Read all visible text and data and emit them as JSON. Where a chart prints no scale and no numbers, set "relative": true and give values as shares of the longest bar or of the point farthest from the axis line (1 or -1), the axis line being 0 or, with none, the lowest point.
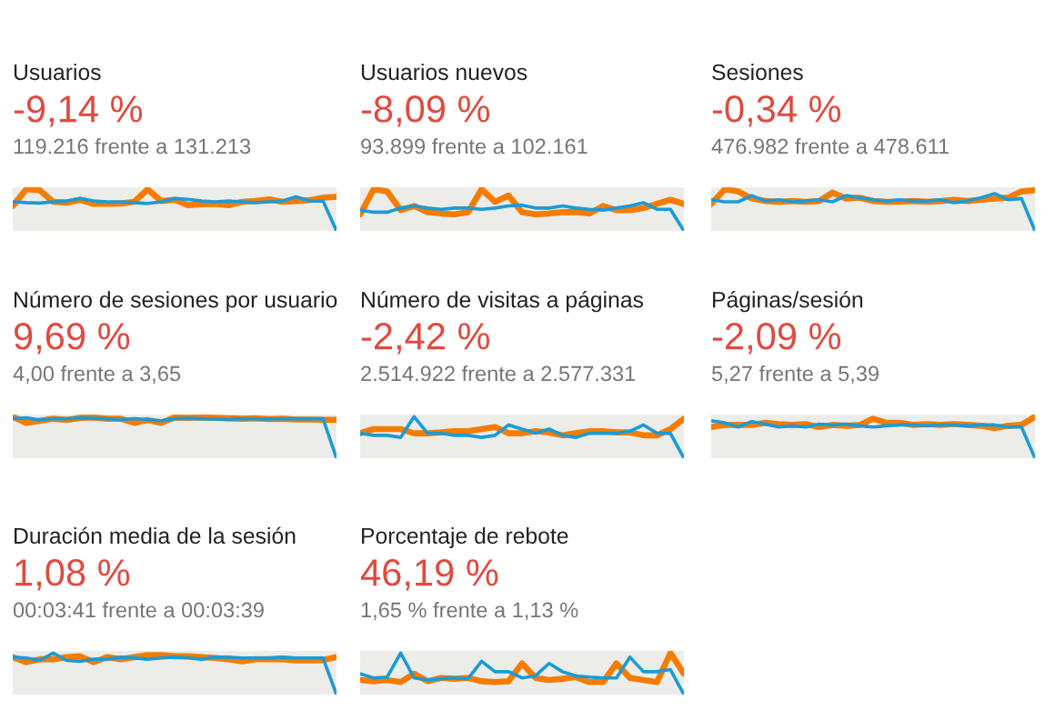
{
  "chart_data": [
    {
      "type": "line",
      "relative": true,
      "title": "Usuarios",
      "subtitle": "-9,14 %",
      "annotations": [
        "119.216 frente a 131.213"
      ],
      "categories": [
        null,
        null,
        null,
        null,
        null,
        null,
        null,
        null,
        null,
        null,
        null,
        null,
        null,
        null,
        null,
        null,
        null,
        null,
        null,
        null,
        null,
        null,
        null,
        null,
        null
      ],
      "series": [
        {
          "color": "#f57c00",
          "values": [
            0.6,
            1,
            0.98,
            0.7,
            0.68,
            0.75,
            0.65,
            0.65,
            0.66,
            0.7,
            1,
            0.72,
            0.75,
            0.62,
            0.64,
            0.65,
            0.62,
            0.7,
            0.72,
            0.76,
            0.7,
            0.72,
            0.74,
            0.8,
            0.82
          ]
        },
        {
          "color": "#1a9bd7",
          "values": [
            0.7,
            0.68,
            0.67,
            0.7,
            0.72,
            0.78,
            0.72,
            0.7,
            0.7,
            0.68,
            0.66,
            0.7,
            0.78,
            0.76,
            0.72,
            0.7,
            0.72,
            0.7,
            0.68,
            0.7,
            0.72,
            0.82,
            0.72,
            0.72,
            0
          ]
        }
      ]
    },
    {
      "type": "line",
      "relative": true,
      "title": "Usuarios nuevos",
      "subtitle": "-8,09 %",
      "annotations": [
        "93.899 frente a 102.161"
      ],
      "categories": [
        null,
        null,
        null,
        null,
        null,
        null,
        null,
        null,
        null,
        null,
        null,
        null,
        null,
        null,
        null,
        null,
        null,
        null,
        null,
        null,
        null,
        null,
        null,
        null,
        null
      ],
      "series": [
        {
          "color": "#f57c00",
          "values": [
            0.4,
            1,
            0.95,
            0.5,
            0.6,
            0.45,
            0.42,
            0.4,
            0.45,
            1,
            0.7,
            0.85,
            0.45,
            0.4,
            0.42,
            0.45,
            0.45,
            0.42,
            0.6,
            0.5,
            0.5,
            0.55,
            0.65,
            0.75,
            0.65
          ]
        },
        {
          "color": "#1a9bd7",
          "values": [
            0.5,
            0.45,
            0.45,
            0.55,
            0.6,
            0.55,
            0.52,
            0.55,
            0.55,
            0.52,
            0.55,
            0.6,
            0.62,
            0.55,
            0.55,
            0.6,
            0.55,
            0.52,
            0.5,
            0.55,
            0.6,
            0.68,
            0.52,
            0.52,
            0
          ]
        }
      ]
    },
    {
      "type": "line",
      "relative": true,
      "title": "Sesiones",
      "subtitle": "-0,34 %",
      "annotations": [
        "476.982 frente a 478.611"
      ],
      "categories": [
        null,
        null,
        null,
        null,
        null,
        null,
        null,
        null,
        null,
        null,
        null,
        null,
        null,
        null,
        null,
        null,
        null,
        null,
        null,
        null,
        null,
        null,
        null,
        null,
        null
      ],
      "series": [
        {
          "color": "#f57c00",
          "values": [
            0.65,
            1,
            0.95,
            0.78,
            0.72,
            0.7,
            0.72,
            0.7,
            0.72,
            0.92,
            0.78,
            0.8,
            0.72,
            0.7,
            0.7,
            0.72,
            0.7,
            0.72,
            0.75,
            0.72,
            0.75,
            0.78,
            0.8,
            0.95,
            0.98
          ]
        },
        {
          "color": "#1a9bd7",
          "values": [
            0.75,
            0.7,
            0.7,
            0.85,
            0.72,
            0.75,
            0.7,
            0.72,
            0.75,
            0.7,
            0.85,
            0.8,
            0.75,
            0.72,
            0.75,
            0.72,
            0.72,
            0.75,
            0.68,
            0.72,
            0.8,
            0.9,
            0.75,
            0.78,
            0
          ]
        }
      ]
    },
    {
      "type": "line",
      "relative": true,
      "title": "Número de sesiones por usuario",
      "subtitle": "9,69 %",
      "annotations": [
        "4,00 frente a 3,65"
      ],
      "categories": [
        null,
        null,
        null,
        null,
        null,
        null,
        null,
        null,
        null,
        null,
        null,
        null,
        null,
        null,
        null,
        null,
        null,
        null,
        null,
        null,
        null,
        null,
        null,
        null,
        null
      ],
      "series": [
        {
          "color": "#f57c00",
          "values": [
            1,
            0.85,
            0.9,
            0.95,
            0.92,
            0.97,
            0.98,
            0.95,
            0.95,
            0.85,
            0.92,
            0.85,
            0.98,
            0.97,
            0.98,
            0.97,
            0.96,
            0.95,
            0.96,
            0.94,
            0.95,
            0.93,
            0.93,
            0.92,
            0.92
          ]
        },
        {
          "color": "#1a9bd7",
          "values": [
            0.95,
            0.97,
            0.92,
            0.95,
            0.95,
            0.97,
            0.96,
            0.95,
            0.93,
            0.95,
            0.93,
            0.9,
            0.95,
            0.96,
            0.95,
            0.94,
            0.93,
            0.95,
            0.95,
            0.94,
            0.95,
            0.95,
            0.95,
            0.95,
            0
          ]
        }
      ]
    },
    {
      "type": "line",
      "relative": true,
      "title": "Número de visitas a páginas",
      "subtitle": "-2,42 %",
      "annotations": [
        "2.514.922 frente a 2.577.331"
      ],
      "categories": [
        null,
        null,
        null,
        null,
        null,
        null,
        null,
        null,
        null,
        null,
        null,
        null,
        null,
        null,
        null,
        null,
        null,
        null,
        null,
        null,
        null,
        null,
        null,
        null,
        null
      ],
      "series": [
        {
          "color": "#f57c00",
          "values": [
            0.6,
            0.7,
            0.7,
            0.7,
            0.6,
            0.6,
            0.62,
            0.65,
            0.65,
            0.7,
            0.75,
            0.6,
            0.6,
            0.65,
            0.62,
            0.55,
            0.6,
            0.65,
            0.65,
            0.62,
            0.62,
            0.55,
            0.55,
            0.7,
            0.95
          ]
        },
        {
          "color": "#1a9bd7",
          "values": [
            0.6,
            0.55,
            0.55,
            0.5,
            1,
            0.6,
            0.6,
            0.55,
            0.55,
            0.5,
            0.55,
            0.8,
            0.7,
            0.6,
            0.7,
            0.55,
            0.5,
            0.6,
            0.6,
            0.6,
            0.65,
            0.8,
            0.6,
            0.6,
            0
          ]
        }
      ]
    },
    {
      "type": "line",
      "relative": true,
      "title": "Páginas/sesión",
      "subtitle": "-2,09 %",
      "annotations": [
        "5,27 frente a 5,39"
      ],
      "categories": [
        null,
        null,
        null,
        null,
        null,
        null,
        null,
        null,
        null,
        null,
        null,
        null,
        null,
        null,
        null,
        null,
        null,
        null,
        null,
        null,
        null,
        null,
        null,
        null,
        null
      ],
      "series": [
        {
          "color": "#f57c00",
          "values": [
            0.75,
            0.8,
            0.8,
            0.8,
            0.85,
            0.82,
            0.8,
            0.82,
            0.75,
            0.8,
            0.78,
            0.8,
            0.95,
            0.85,
            0.85,
            0.8,
            0.82,
            0.8,
            0.82,
            0.8,
            0.78,
            0.72,
            0.78,
            0.8,
            1
          ]
        },
        {
          "color": "#1a9bd7",
          "values": [
            0.9,
            0.85,
            0.75,
            0.88,
            0.82,
            0.75,
            0.78,
            0.75,
            0.82,
            0.8,
            0.82,
            0.78,
            0.75,
            0.78,
            0.8,
            0.8,
            0.78,
            0.8,
            0.8,
            0.78,
            0.8,
            0.8,
            0.75,
            0.75,
            0
          ]
        }
      ]
    },
    {
      "type": "line",
      "relative": true,
      "title": "Duración media de la sesión",
      "subtitle": "1,08 %",
      "annotations": [
        "00:03:41 frente a 00:03:39"
      ],
      "categories": [
        null,
        null,
        null,
        null,
        null,
        null,
        null,
        null,
        null,
        null,
        null,
        null,
        null,
        null,
        null,
        null,
        null,
        null,
        null,
        null,
        null,
        null,
        null,
        null,
        null
      ],
      "series": [
        {
          "color": "#f57c00",
          "values": [
            0.9,
            0.78,
            0.85,
            0.85,
            0.9,
            0.92,
            0.78,
            0.9,
            0.85,
            0.9,
            0.95,
            0.95,
            0.92,
            0.92,
            0.9,
            0.88,
            0.85,
            0.8,
            0.85,
            0.85,
            0.85,
            0.82,
            0.82,
            0.83,
            0.9
          ]
        },
        {
          "color": "#1a9bd7",
          "values": [
            0.9,
            0.88,
            0.82,
            1,
            0.82,
            0.8,
            0.85,
            0.85,
            0.9,
            0.88,
            0.85,
            0.88,
            0.9,
            0.88,
            0.85,
            0.9,
            0.9,
            0.88,
            0.88,
            0.88,
            0.9,
            0.88,
            0.88,
            0.88,
            0
          ]
        }
      ]
    },
    {
      "type": "line",
      "relative": true,
      "title": "Porcentaje de rebote",
      "subtitle": "46,19 %",
      "annotations": [
        "1,65 % frente a 1,13 %"
      ],
      "categories": [
        null,
        null,
        null,
        null,
        null,
        null,
        null,
        null,
        null,
        null,
        null,
        null,
        null,
        null,
        null,
        null,
        null,
        null,
        null,
        null,
        null,
        null,
        null,
        null,
        null
      ],
      "series": [
        {
          "color": "#f57c00",
          "values": [
            0.35,
            0.32,
            0.35,
            0.3,
            0.5,
            0.32,
            0.4,
            0.38,
            0.4,
            0.32,
            0.3,
            0.32,
            0.75,
            0.4,
            0.35,
            0.38,
            0.42,
            0.3,
            0.3,
            0.75,
            0.4,
            0.35,
            0.3,
            1,
            0.5
          ]
        },
        {
          "color": "#1a9bd7",
          "values": [
            0.5,
            0.4,
            0.42,
            1,
            0.4,
            0.35,
            0.38,
            0.4,
            0.38,
            0.8,
            0.55,
            0.55,
            0.4,
            0.45,
            0.75,
            0.55,
            0.45,
            0.42,
            0.4,
            0.4,
            0.9,
            0.55,
            0.55,
            0.6,
            0
          ]
        }
      ]
    }
  ]
}
